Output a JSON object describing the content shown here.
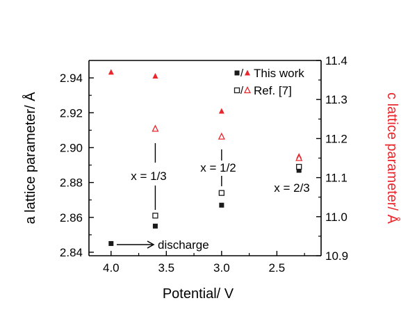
{
  "chart_data": {
    "type": "scatter",
    "xlabel": "Potential/ V",
    "ylabel_left": "a lattice parameter/ Å",
    "ylabel_right": "c lattice parameter/ Å",
    "x_reversed": true,
    "xlim": [
      4.2,
      2.1
    ],
    "ylim_left": [
      2.838,
      2.95
    ],
    "ylim_right": [
      10.9,
      11.4
    ],
    "x_ticks": [
      4.0,
      3.5,
      3.0,
      2.5
    ],
    "x_tick_labels": [
      "4.0",
      "3.5",
      "3.0",
      "2.5"
    ],
    "y_left_ticks": [
      2.84,
      2.86,
      2.88,
      2.9,
      2.92,
      2.94
    ],
    "y_left_tick_labels": [
      "2.84",
      "2.86",
      "2.88",
      "2.90",
      "2.92",
      "2.94"
    ],
    "y_right_ticks": [
      10.9,
      11.0,
      11.1,
      11.2,
      11.3,
      11.4
    ],
    "y_right_tick_labels": [
      "10.9",
      "11.0",
      "11.1",
      "11.2",
      "11.3",
      "11.4"
    ],
    "series": [
      {
        "name": "This work",
        "axis": "left",
        "marker": "filled-square",
        "color": "#1a1a1a",
        "x": [
          4.0,
          3.6,
          3.0,
          2.3
        ],
        "y": [
          2.845,
          2.855,
          2.867,
          2.887
        ]
      },
      {
        "name": "Ref. [7]",
        "axis": "left",
        "marker": "open-square",
        "color": "#1a1a1a",
        "x": [
          3.6,
          3.0,
          2.3
        ],
        "y": [
          2.861,
          2.874,
          2.889
        ]
      },
      {
        "name": "This work",
        "axis": "right",
        "marker": "filled-triangle",
        "color": "#e8262b",
        "x": [
          4.0,
          3.6,
          3.0,
          2.3
        ],
        "y": [
          11.37,
          11.36,
          11.27,
          11.155
        ]
      },
      {
        "name": "Ref. [7]",
        "axis": "right",
        "marker": "open-triangle",
        "color": "#e8262b",
        "x": [
          3.6,
          3.0,
          2.3
        ],
        "y": [
          11.225,
          11.205,
          11.15
        ]
      }
    ],
    "legend": [
      {
        "label": "This work",
        "sep": "/",
        "markers": [
          "filled-square",
          "filled-triangle"
        ]
      },
      {
        "label": "Ref. [7]",
        "sep": "/",
        "markers": [
          "open-square",
          "open-triangle"
        ]
      }
    ],
    "legend_position": "top-right",
    "annotations": {
      "x13": "x = 1/3",
      "x12": "x = 1/2",
      "x23": "x = 2/3",
      "discharge": "discharge"
    },
    "colors": {
      "axis": "#000000",
      "left": "#1a1a1a",
      "right": "#e8262b"
    },
    "grid": false
  }
}
